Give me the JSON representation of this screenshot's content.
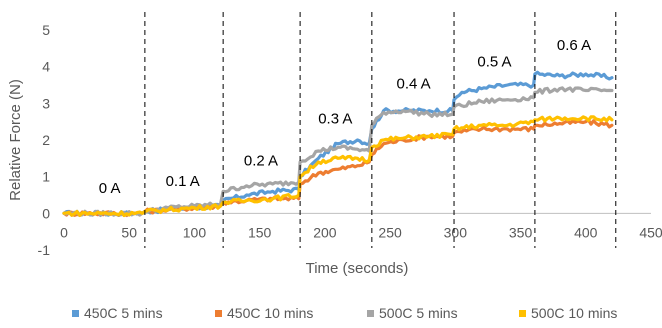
{
  "chart_data": {
    "type": "line",
    "title": "",
    "xlabel": "Time (seconds)",
    "ylabel": "Relative Force (N)",
    "xlim": [
      0,
      450
    ],
    "ylim": [
      -1,
      5
    ],
    "x_ticks": [
      0,
      50,
      100,
      150,
      200,
      250,
      300,
      350,
      400,
      450
    ],
    "y_ticks": [
      -1,
      0,
      1,
      2,
      3,
      4,
      5
    ],
    "grid": false,
    "legend_position": "bottom",
    "phase_boundaries": [
      62,
      122,
      181,
      236,
      299,
      361,
      423
    ],
    "annotations": [
      {
        "text": "0 A",
        "x": 35,
        "y": 0.55
      },
      {
        "text": "0.1 A",
        "x": 91,
        "y": 0.75
      },
      {
        "text": "0.2 A",
        "x": 151,
        "y": 1.3
      },
      {
        "text": "0.3 A",
        "x": 208,
        "y": 2.45
      },
      {
        "text": "0.4 A",
        "x": 268,
        "y": 3.4
      },
      {
        "text": "0.5 A",
        "x": 330,
        "y": 4.0
      },
      {
        "text": "0.6 A",
        "x": 391,
        "y": 4.45
      }
    ],
    "series": [
      {
        "name": "450C 5 mins",
        "color": "#5B9BD5",
        "x": [
          0,
          60,
          62,
          80,
          100,
          120,
          122,
          140,
          160,
          180,
          181,
          195,
          210,
          225,
          234,
          236,
          245,
          260,
          280,
          298,
          299,
          305,
          320,
          340,
          360,
          361,
          380,
          400,
          420
        ],
        "y": [
          0,
          0,
          0.05,
          0.1,
          0.15,
          0.2,
          0.35,
          0.5,
          0.6,
          0.65,
          1.0,
          1.5,
          1.9,
          2.0,
          1.9,
          2.3,
          2.8,
          2.8,
          2.8,
          2.8,
          3.1,
          3.3,
          3.4,
          3.5,
          3.5,
          3.8,
          3.75,
          3.8,
          3.7
        ]
      },
      {
        "name": "450C 10 mins",
        "color": "#ED7D31",
        "x": [
          0,
          60,
          62,
          80,
          100,
          120,
          122,
          140,
          160,
          180,
          181,
          195,
          210,
          225,
          234,
          236,
          245,
          260,
          280,
          298,
          299,
          320,
          340,
          360,
          361,
          380,
          400,
          420
        ],
        "y": [
          0,
          0,
          0.05,
          0.1,
          0.15,
          0.2,
          0.3,
          0.35,
          0.4,
          0.4,
          0.8,
          1.1,
          1.2,
          1.3,
          1.4,
          1.6,
          1.9,
          2.0,
          2.1,
          2.1,
          2.2,
          2.3,
          2.3,
          2.3,
          2.4,
          2.45,
          2.5,
          2.4
        ]
      },
      {
        "name": "500C 5 mins",
        "color": "#A5A5A5",
        "x": [
          0,
          60,
          62,
          80,
          100,
          120,
          122,
          140,
          160,
          180,
          181,
          195,
          210,
          225,
          234,
          236,
          245,
          260,
          280,
          298,
          299,
          320,
          340,
          360,
          361,
          380,
          400,
          420
        ],
        "y": [
          0,
          0,
          0.05,
          0.15,
          0.2,
          0.25,
          0.6,
          0.75,
          0.8,
          0.85,
          1.4,
          1.7,
          1.8,
          1.75,
          1.7,
          2.4,
          2.75,
          2.8,
          2.7,
          2.7,
          2.9,
          3.05,
          3.1,
          3.15,
          3.3,
          3.4,
          3.35,
          3.35
        ]
      },
      {
        "name": "500C 10 mins",
        "color": "#FFC000",
        "x": [
          0,
          60,
          62,
          80,
          100,
          120,
          122,
          140,
          160,
          180,
          181,
          195,
          210,
          225,
          234,
          236,
          245,
          260,
          280,
          298,
          299,
          320,
          340,
          360,
          361,
          380,
          400,
          420
        ],
        "y": [
          0,
          0,
          0.05,
          0.1,
          0.15,
          0.2,
          0.3,
          0.35,
          0.4,
          0.5,
          1.0,
          1.4,
          1.5,
          1.5,
          1.45,
          1.8,
          2.0,
          2.05,
          2.1,
          2.15,
          2.3,
          2.4,
          2.4,
          2.5,
          2.55,
          2.6,
          2.6,
          2.55
        ]
      }
    ]
  }
}
